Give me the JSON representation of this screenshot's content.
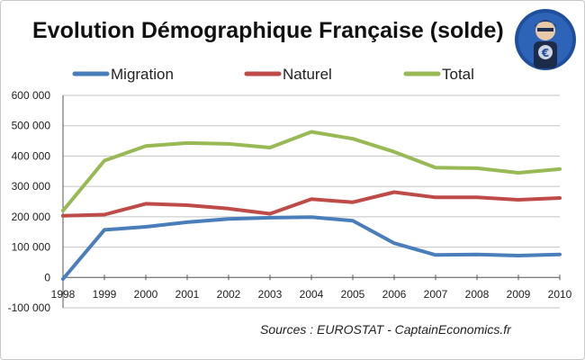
{
  "chart_data": {
    "type": "line",
    "title": "Evolution Démographique Française (solde)",
    "x": [
      "1998",
      "1999",
      "2000",
      "2001",
      "2002",
      "2003",
      "2004",
      "2005",
      "2006",
      "2007",
      "2008",
      "2009",
      "2010"
    ],
    "y_ticks": [
      "600 000",
      "500 000",
      "400 000",
      "300 000",
      "200 000",
      "100 000",
      "0",
      "-100 000"
    ],
    "y_tick_values": [
      600000,
      500000,
      400000,
      300000,
      200000,
      100000,
      0,
      -100000
    ],
    "ylim": [
      -100000,
      600000
    ],
    "grid": true,
    "legend_position": "top",
    "series": [
      {
        "name": "Migration",
        "color": "#4a7ebb",
        "values": [
          -5000,
          157000,
          167000,
          182000,
          193000,
          197000,
          199000,
          187000,
          113000,
          74000,
          76000,
          72000,
          76000
        ]
      },
      {
        "name": "Naturel",
        "color": "#be4b48",
        "values": [
          203000,
          207000,
          243000,
          238000,
          227000,
          210000,
          258000,
          248000,
          281000,
          264000,
          264000,
          256000,
          262000
        ]
      },
      {
        "name": "Total",
        "color": "#98b954",
        "values": [
          220000,
          385000,
          433000,
          443000,
          440000,
          428000,
          480000,
          457000,
          414000,
          362000,
          360000,
          345000,
          357000
        ]
      }
    ],
    "source": "Sources : EUROSTAT   - CaptainEconomics.fr"
  },
  "logo": {
    "icon": "captain-economics-logo-icon",
    "color": "#1f4f9c"
  }
}
